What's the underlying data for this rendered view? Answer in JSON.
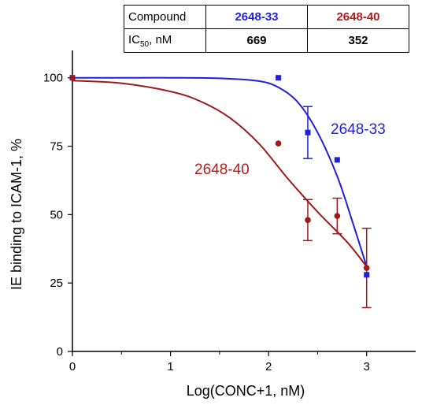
{
  "table": {
    "header_label": "Compound",
    "row_label_main": "IC",
    "row_label_sub": "50",
    "row_label_unit": ", nM",
    "columns": [
      {
        "name": "2648-33",
        "ic50": "669",
        "color": "#1f1fdd"
      },
      {
        "name": "2648-40",
        "ic50": "352",
        "color": "#b31b1b"
      }
    ]
  },
  "chart_data": {
    "type": "scatter",
    "xlabel": "Log(CONC+1, nM)",
    "ylabel": "IE binding to ICAM-1, %",
    "xlim": [
      0,
      3.5
    ],
    "ylim": [
      0,
      110
    ],
    "xticks": [
      0,
      1,
      2,
      3
    ],
    "yticks": [
      0,
      25,
      50,
      75,
      100
    ],
    "grid": false,
    "series": [
      {
        "name": "2648-33",
        "color": "#1f1fdd",
        "marker": "square",
        "points": [
          {
            "x": 0,
            "y": 100
          },
          {
            "x": 2.1,
            "y": 100
          },
          {
            "x": 2.4,
            "y": 80,
            "err": 9.5
          },
          {
            "x": 2.7,
            "y": 70
          },
          {
            "x": 3.0,
            "y": 28
          }
        ],
        "fit_curve": [
          [
            0,
            100
          ],
          [
            0.5,
            100
          ],
          [
            1.0,
            100
          ],
          [
            1.5,
            99.8
          ],
          [
            1.9,
            98.8
          ],
          [
            2.1,
            96.5
          ],
          [
            2.3,
            91
          ],
          [
            2.5,
            80
          ],
          [
            2.7,
            64
          ],
          [
            2.85,
            48
          ],
          [
            3.0,
            31
          ]
        ]
      },
      {
        "name": "2648-40",
        "color": "#9e1a1a",
        "marker": "circle",
        "points": [
          {
            "x": 0,
            "y": 100
          },
          {
            "x": 2.1,
            "y": 76
          },
          {
            "x": 2.4,
            "y": 48,
            "err": 7.5
          },
          {
            "x": 2.7,
            "y": 49.5,
            "err": 6.5
          },
          {
            "x": 3.0,
            "y": 30.5,
            "err": 14.5
          }
        ],
        "fit_curve": [
          [
            0,
            99
          ],
          [
            0.5,
            98
          ],
          [
            1.0,
            95
          ],
          [
            1.3,
            91.5
          ],
          [
            1.6,
            85.5
          ],
          [
            1.9,
            76
          ],
          [
            2.2,
            63
          ],
          [
            2.5,
            51
          ],
          [
            2.8,
            40
          ],
          [
            3.0,
            31
          ]
        ]
      }
    ],
    "annotations": [
      {
        "text": "2648-33",
        "color": "#1f1fdd"
      },
      {
        "text": "2648-40",
        "color": "#b31b1b"
      }
    ]
  }
}
